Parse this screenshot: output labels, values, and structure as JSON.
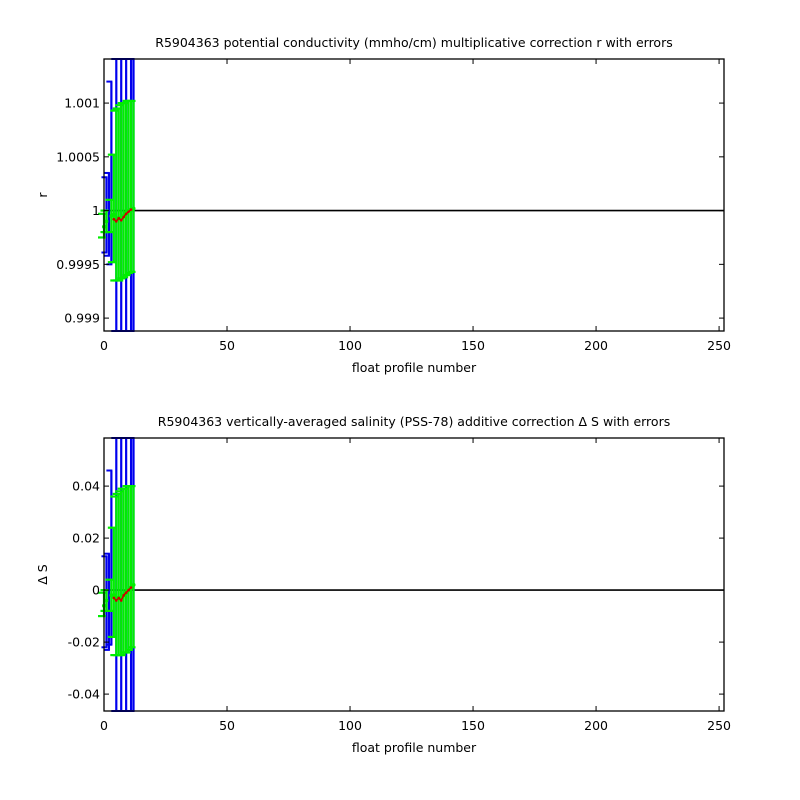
{
  "chart_data": [
    {
      "type": "scatter",
      "title": "R5904363 potential conductivity (mmho/cm) multiplicative correction r with errors",
      "xlabel": "float profile number",
      "ylabel": "r",
      "xlim": [
        0,
        252
      ],
      "ylim": [
        0.99888,
        1.00141
      ],
      "xticks": [
        0,
        50,
        100,
        150,
        200,
        250
      ],
      "yticks": [
        {
          "value": 0.999,
          "label": "0.999"
        },
        {
          "value": 0.9995,
          "label": "0.9995"
        },
        {
          "value": 1.0,
          "label": "1"
        },
        {
          "value": 1.0005,
          "label": "1.0005"
        },
        {
          "value": 1.001,
          "label": "1.001"
        }
      ],
      "reference_line": 1.0,
      "grid": false,
      "colors": {
        "reference": "#000000",
        "blue": "#0000ee",
        "green": "#00ee00",
        "red": "#cc0000"
      },
      "blue_bars": [
        {
          "x": 1,
          "low": 0.99961,
          "high": 1.00031
        },
        {
          "x": 2,
          "low": 0.99958,
          "high": 1.00035
        },
        {
          "x": 3,
          "low": 0.9995,
          "high": 1.0012
        },
        {
          "x": 5,
          "low": 0.99888,
          "high": 1.00141
        },
        {
          "x": 7,
          "low": 0.99888,
          "high": 1.00141
        },
        {
          "x": 9,
          "low": 0.99888,
          "high": 1.00141
        },
        {
          "x": 11,
          "low": 0.99888,
          "high": 1.00141
        },
        {
          "x": 12,
          "low": 0.99888,
          "high": 1.00141
        }
      ],
      "green_bars": [
        {
          "x": 0,
          "y": 0.99985,
          "low": 0.99975,
          "high": 0.99997
        },
        {
          "x": 1,
          "y": 0.9999,
          "low": 0.9998,
          "high": 1.0
        },
        {
          "x": 3,
          "y": 0.99995,
          "low": 0.9998,
          "high": 1.0001
        },
        {
          "x": 4,
          "y": 0.99996,
          "low": 0.99952,
          "high": 1.00052
        },
        {
          "x": 5,
          "y": 0.99992,
          "low": 0.99935,
          "high": 1.00093
        },
        {
          "x": 6,
          "y": 0.99993,
          "low": 0.99935,
          "high": 1.00095
        },
        {
          "x": 7,
          "y": 0.99993,
          "low": 0.99935,
          "high": 1.00098
        },
        {
          "x": 8,
          "y": 0.99995,
          "low": 0.99937,
          "high": 1.001
        },
        {
          "x": 9,
          "y": 0.99998,
          "low": 0.99938,
          "high": 1.001
        },
        {
          "x": 10,
          "y": 1.0,
          "low": 0.9994,
          "high": 1.00102
        },
        {
          "x": 11,
          "y": 1.00001,
          "low": 0.99942,
          "high": 1.00102
        },
        {
          "x": 12,
          "y": 1.00002,
          "low": 0.99943,
          "high": 1.00102
        }
      ],
      "red_line": [
        {
          "x": 4,
          "y": 0.99992
        },
        {
          "x": 5,
          "y": 0.9999
        },
        {
          "x": 6,
          "y": 0.99993
        },
        {
          "x": 7,
          "y": 0.99991
        },
        {
          "x": 8,
          "y": 0.99994
        },
        {
          "x": 9,
          "y": 0.99997
        },
        {
          "x": 10,
          "y": 0.99999
        },
        {
          "x": 11,
          "y": 1.00001
        }
      ]
    },
    {
      "type": "scatter",
      "title": "R5904363 vertically-averaged salinity (PSS-78) additive correction Δ S with errors",
      "xlabel": "float profile number",
      "ylabel": "Δ S",
      "xlim": [
        0,
        252
      ],
      "ylim": [
        -0.0465,
        0.0585
      ],
      "xticks": [
        0,
        50,
        100,
        150,
        200,
        250
      ],
      "yticks": [
        {
          "value": -0.04,
          "label": "-0.04"
        },
        {
          "value": -0.02,
          "label": "-0.02"
        },
        {
          "value": 0,
          "label": "0"
        },
        {
          "value": 0.02,
          "label": "0.02"
        },
        {
          "value": 0.04,
          "label": "0.04"
        }
      ],
      "reference_line": 0,
      "grid": false,
      "colors": {
        "reference": "#000000",
        "blue": "#0000ee",
        "green": "#00ee00",
        "red": "#cc0000"
      },
      "blue_bars": [
        {
          "x": 1,
          "low": -0.022,
          "high": 0.013
        },
        {
          "x": 2,
          "low": -0.023,
          "high": 0.014
        },
        {
          "x": 3,
          "low": -0.021,
          "high": 0.046
        },
        {
          "x": 5,
          "low": -0.0465,
          "high": 0.0585
        },
        {
          "x": 7,
          "low": -0.0465,
          "high": 0.0585
        },
        {
          "x": 9,
          "low": -0.0465,
          "high": 0.0585
        },
        {
          "x": 11,
          "low": -0.0465,
          "high": 0.0585
        },
        {
          "x": 12,
          "low": -0.0465,
          "high": 0.0585
        }
      ],
      "green_bars": [
        {
          "x": 0,
          "y": -0.006,
          "low": -0.01,
          "high": -0.001
        },
        {
          "x": 1,
          "y": -0.004,
          "low": -0.008,
          "high": 0.0
        },
        {
          "x": 3,
          "y": -0.002,
          "low": -0.008,
          "high": 0.004
        },
        {
          "x": 4,
          "y": -0.002,
          "low": -0.018,
          "high": 0.024
        },
        {
          "x": 5,
          "y": -0.003,
          "low": -0.025,
          "high": 0.036
        },
        {
          "x": 6,
          "y": -0.003,
          "low": -0.025,
          "high": 0.037
        },
        {
          "x": 7,
          "y": -0.003,
          "low": -0.025,
          "high": 0.038
        },
        {
          "x": 8,
          "y": -0.002,
          "low": -0.025,
          "high": 0.039
        },
        {
          "x": 9,
          "y": -0.001,
          "low": -0.024,
          "high": 0.039
        },
        {
          "x": 10,
          "y": 0.0,
          "low": -0.024,
          "high": 0.04
        },
        {
          "x": 11,
          "y": 0.001,
          "low": -0.023,
          "high": 0.04
        },
        {
          "x": 12,
          "y": 0.002,
          "low": -0.022,
          "high": 0.04
        }
      ],
      "red_line": [
        {
          "x": 4,
          "y": -0.003
        },
        {
          "x": 5,
          "y": -0.004
        },
        {
          "x": 6,
          "y": -0.003
        },
        {
          "x": 7,
          "y": -0.004
        },
        {
          "x": 8,
          "y": -0.002
        },
        {
          "x": 9,
          "y": -0.001
        },
        {
          "x": 10,
          "y": 0.0
        },
        {
          "x": 11,
          "y": 0.001
        }
      ]
    }
  ]
}
